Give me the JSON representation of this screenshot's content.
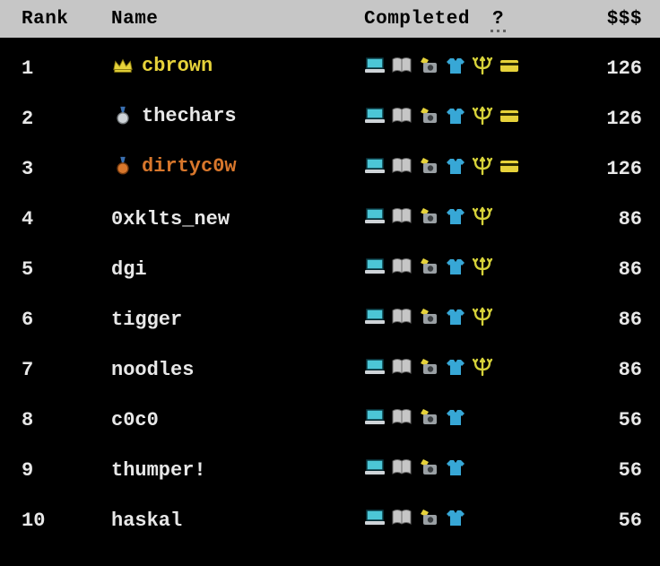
{
  "colors": {
    "bg": "#000000",
    "header_bg": "#c6c6c6",
    "header_fg": "#000000",
    "row_fg": "#e8e8e8",
    "name_default": "#e8e8e8",
    "gold": "#e6d23a",
    "silver": "#cfd4d8",
    "bronze": "#d8772c",
    "cyan": "#4cc6d6",
    "book": "#c6c6c6",
    "camera_star": "#e6d23a",
    "camera_body": "#9aa0a4",
    "shirt": "#37a7d6",
    "trident": "#d6d23a",
    "card": "#e6d23a"
  },
  "header": {
    "rank": "Rank",
    "name": "Name",
    "completed": "Completed",
    "help_glyph": "?",
    "cash": "$$$"
  },
  "icon_defs": {
    "laptop": "laptop-icon",
    "book": "book-icon",
    "camera": "camera-icon",
    "shirt": "shirt-icon",
    "trident": "trident-icon",
    "card": "card-icon"
  },
  "medals": {
    "crown": "crown-icon",
    "silver": "silver-medal-icon",
    "bronze": "bronze-medal-icon"
  },
  "rows": [
    {
      "rank": "1",
      "name": "cbrown",
      "name_color": "#e6d23a",
      "medal": "crown",
      "icons": [
        "laptop",
        "book",
        "camera",
        "shirt",
        "trident",
        "card"
      ],
      "cash": "126"
    },
    {
      "rank": "2",
      "name": "thechars",
      "name_color": "#e8e8e8",
      "medal": "silver",
      "icons": [
        "laptop",
        "book",
        "camera",
        "shirt",
        "trident",
        "card"
      ],
      "cash": "126"
    },
    {
      "rank": "3",
      "name": "dirtyc0w",
      "name_color": "#d8772c",
      "medal": "bronze",
      "icons": [
        "laptop",
        "book",
        "camera",
        "shirt",
        "trident",
        "card"
      ],
      "cash": "126"
    },
    {
      "rank": "4",
      "name": "0xklts_new",
      "name_color": "#e8e8e8",
      "medal": null,
      "icons": [
        "laptop",
        "book",
        "camera",
        "shirt",
        "trident"
      ],
      "cash": "86"
    },
    {
      "rank": "5",
      "name": "dgi",
      "name_color": "#e8e8e8",
      "medal": null,
      "icons": [
        "laptop",
        "book",
        "camera",
        "shirt",
        "trident"
      ],
      "cash": "86"
    },
    {
      "rank": "6",
      "name": "tigger",
      "name_color": "#e8e8e8",
      "medal": null,
      "icons": [
        "laptop",
        "book",
        "camera",
        "shirt",
        "trident"
      ],
      "cash": "86"
    },
    {
      "rank": "7",
      "name": "noodles",
      "name_color": "#e8e8e8",
      "medal": null,
      "icons": [
        "laptop",
        "book",
        "camera",
        "shirt",
        "trident"
      ],
      "cash": "86"
    },
    {
      "rank": "8",
      "name": "c0c0",
      "name_color": "#e8e8e8",
      "medal": null,
      "icons": [
        "laptop",
        "book",
        "camera",
        "shirt"
      ],
      "cash": "56"
    },
    {
      "rank": "9",
      "name": "thumper!",
      "name_color": "#e8e8e8",
      "medal": null,
      "icons": [
        "laptop",
        "book",
        "camera",
        "shirt"
      ],
      "cash": "56"
    },
    {
      "rank": "10",
      "name": "haskal",
      "name_color": "#e8e8e8",
      "medal": null,
      "icons": [
        "laptop",
        "book",
        "camera",
        "shirt"
      ],
      "cash": "56"
    }
  ]
}
